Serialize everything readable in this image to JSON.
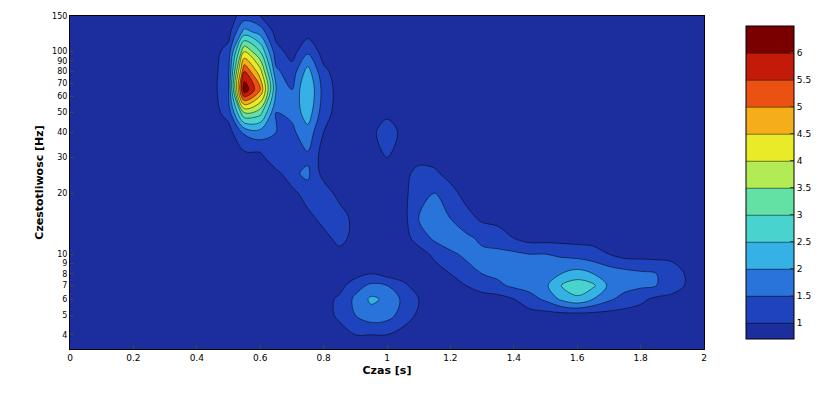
{
  "chart_data": {
    "type": "contour",
    "x_label": "Czas [s]",
    "y_label": "Czestotliwosc [Hz]",
    "log": "y",
    "grid": false,
    "xlim": [
      0,
      2
    ],
    "xticks": [
      0,
      0.2,
      0.4,
      0.6,
      0.8,
      1,
      1.2,
      1.4,
      1.6,
      1.8,
      2
    ],
    "ylim": [
      3.4,
      150
    ],
    "yticks": [
      4,
      5,
      6,
      7,
      8,
      9,
      10,
      20,
      30,
      40,
      50,
      60,
      70,
      80,
      90,
      100,
      150
    ],
    "x": [
      0,
      0.05,
      0.1,
      0.15,
      0.2,
      0.25,
      0.3,
      0.35,
      0.4,
      0.45,
      0.5,
      0.55,
      0.6,
      0.65,
      0.7,
      0.75,
      0.8,
      0.85,
      0.9,
      0.95,
      1,
      1.05,
      1.1,
      1.15,
      1.2,
      1.25,
      1.3,
      1.35,
      1.4,
      1.45,
      1.5,
      1.55,
      1.6,
      1.65,
      1.7,
      1.75,
      1.8,
      1.85,
      1.9,
      1.95,
      2
    ],
    "y": [
      3.4,
      4,
      5,
      6,
      7,
      8,
      10,
      12,
      15,
      20,
      25,
      30,
      40,
      50,
      65,
      80,
      100,
      125,
      150
    ],
    "z": [
      [
        0.8,
        0.8,
        0.8,
        0.8,
        0.8,
        0.8,
        0.8,
        0.8,
        0.8,
        0.8,
        0.8,
        0.8,
        0.8,
        0.8,
        0.8,
        0.8,
        0.8,
        0.8,
        0.8,
        0.8,
        0.8,
        0.8,
        0.8,
        0.8,
        0.8,
        0.8,
        0.8,
        0.8,
        0.8,
        0.8,
        0.8,
        0.8,
        0.8,
        0.8,
        0.8,
        0.8,
        0.8,
        0.8,
        0.8,
        0.8,
        0.8
      ],
      [
        0.8,
        0.8,
        0.8,
        0.8,
        0.8,
        0.8,
        0.8,
        0.8,
        0.8,
        0.8,
        0.8,
        0.8,
        0.8,
        0.8,
        0.8,
        0.8,
        0.8,
        0.8,
        1.0,
        1.0,
        1.0,
        0.8,
        0.8,
        0.8,
        0.8,
        0.8,
        0.8,
        0.8,
        0.8,
        0.8,
        0.8,
        0.8,
        0.8,
        0.8,
        0.8,
        0.8,
        0.8,
        0.8,
        0.8,
        0.8,
        0.8
      ],
      [
        0.8,
        0.8,
        0.8,
        0.8,
        0.8,
        0.8,
        0.8,
        0.8,
        0.8,
        0.8,
        0.8,
        0.8,
        0.8,
        0.8,
        0.8,
        0.8,
        0.8,
        1.1,
        1.5,
        1.8,
        1.7,
        1.3,
        0.9,
        0.8,
        0.8,
        0.8,
        0.8,
        0.8,
        0.8,
        0.8,
        0.8,
        0.8,
        0.8,
        0.8,
        0.8,
        0.8,
        0.8,
        0.8,
        0.8,
        0.8,
        0.8
      ],
      [
        0.8,
        0.8,
        0.8,
        0.8,
        0.8,
        0.8,
        0.8,
        0.8,
        0.8,
        0.8,
        0.8,
        0.8,
        0.8,
        0.8,
        0.8,
        0.8,
        0.8,
        1.1,
        1.6,
        2.1,
        1.9,
        1.4,
        1.0,
        0.8,
        0.8,
        0.8,
        0.8,
        0.8,
        1.0,
        1.3,
        1.6,
        2.1,
        2.4,
        2.0,
        1.6,
        1.3,
        1.1,
        0.9,
        0.8,
        0.8,
        0.8
      ],
      [
        0.8,
        0.8,
        0.8,
        0.8,
        0.8,
        0.8,
        0.8,
        0.8,
        0.8,
        0.8,
        0.8,
        0.8,
        0.8,
        0.8,
        0.8,
        0.8,
        0.8,
        0.8,
        1.3,
        1.6,
        1.5,
        1.1,
        0.8,
        0.8,
        0.8,
        1.0,
        1.2,
        1.4,
        1.6,
        1.7,
        1.9,
        2.5,
        2.8,
        2.6,
        1.9,
        1.7,
        1.6,
        1.5,
        1.3,
        0.9,
        0.8
      ],
      [
        0.8,
        0.8,
        0.8,
        0.8,
        0.8,
        0.8,
        0.8,
        0.8,
        0.8,
        0.8,
        0.8,
        0.8,
        0.8,
        0.8,
        0.8,
        0.8,
        0.8,
        0.8,
        0.8,
        1.0,
        0.8,
        0.8,
        0.8,
        0.8,
        1.0,
        1.3,
        1.5,
        1.6,
        1.7,
        1.7,
        1.8,
        2.0,
        2.2,
        2.0,
        1.8,
        1.7,
        1.6,
        1.5,
        1.3,
        0.9,
        0.8
      ],
      [
        0.8,
        0.8,
        0.8,
        0.8,
        0.8,
        0.8,
        0.8,
        0.8,
        0.8,
        0.8,
        0.8,
        0.8,
        0.8,
        0.8,
        0.8,
        0.8,
        0.8,
        0.8,
        0.8,
        0.8,
        0.8,
        0.8,
        0.8,
        1.1,
        1.4,
        1.6,
        1.6,
        1.6,
        1.6,
        1.5,
        1.5,
        1.4,
        1.3,
        1.2,
        1.0,
        0.8,
        0.8,
        0.8,
        0.8,
        0.8,
        0.8
      ],
      [
        0.8,
        0.8,
        0.8,
        0.8,
        0.8,
        0.8,
        0.8,
        0.8,
        0.8,
        0.8,
        0.8,
        0.8,
        0.8,
        0.8,
        0.8,
        0.8,
        0.8,
        1.2,
        0.8,
        0.8,
        0.8,
        0.8,
        1.2,
        1.6,
        1.8,
        1.6,
        1.4,
        1.3,
        1.0,
        0.8,
        0.8,
        0.8,
        0.8,
        0.8,
        0.8,
        0.8,
        0.8,
        0.8,
        0.8,
        0.8,
        0.8
      ],
      [
        0.8,
        0.8,
        0.8,
        0.8,
        0.8,
        0.8,
        0.8,
        0.8,
        0.8,
        0.8,
        0.8,
        0.8,
        0.8,
        0.8,
        0.8,
        0.8,
        1.2,
        1.3,
        0.8,
        0.8,
        0.8,
        0.8,
        1.5,
        1.7,
        1.5,
        1.2,
        0.9,
        0.8,
        0.8,
        0.8,
        0.8,
        0.8,
        0.8,
        0.8,
        0.8,
        0.8,
        0.8,
        0.8,
        0.8,
        0.8,
        0.8
      ],
      [
        0.8,
        0.8,
        0.8,
        0.8,
        0.8,
        0.8,
        0.8,
        0.8,
        0.8,
        0.8,
        0.8,
        0.8,
        0.8,
        0.8,
        0.8,
        1.3,
        1.3,
        0.8,
        0.8,
        0.8,
        0.8,
        0.8,
        1.4,
        1.5,
        1.2,
        0.8,
        0.8,
        0.8,
        0.8,
        0.8,
        0.8,
        0.8,
        0.8,
        0.8,
        0.8,
        0.8,
        0.8,
        0.8,
        0.8,
        0.8,
        0.8
      ],
      [
        0.8,
        0.8,
        0.8,
        0.8,
        0.8,
        0.8,
        0.8,
        0.8,
        0.8,
        0.8,
        0.8,
        0.8,
        0.8,
        0.8,
        1.4,
        1.6,
        0.8,
        0.8,
        0.8,
        0.8,
        0.8,
        0.8,
        1.2,
        1.1,
        0.8,
        0.8,
        0.8,
        0.8,
        0.8,
        0.8,
        0.8,
        0.8,
        0.8,
        0.8,
        0.8,
        0.8,
        0.8,
        0.8,
        0.8,
        0.8,
        0.8
      ],
      [
        0.8,
        0.8,
        0.8,
        0.8,
        0.8,
        0.8,
        0.8,
        0.8,
        0.8,
        0.8,
        0.8,
        0.8,
        0.8,
        1.5,
        1.5,
        1.4,
        0.8,
        0.8,
        0.8,
        0.8,
        1.0,
        0.8,
        0.8,
        0.8,
        0.8,
        0.8,
        0.8,
        0.8,
        0.8,
        0.8,
        0.8,
        0.8,
        0.8,
        0.8,
        0.8,
        0.8,
        0.8,
        0.8,
        0.8,
        0.8,
        0.8
      ],
      [
        0.8,
        0.8,
        0.8,
        0.8,
        0.8,
        0.8,
        0.8,
        0.8,
        0.8,
        0.8,
        0.8,
        1.6,
        1.8,
        1.5,
        1.4,
        1.8,
        1.0,
        0.8,
        0.8,
        0.8,
        1.4,
        0.8,
        0.8,
        0.8,
        0.8,
        0.8,
        0.8,
        0.8,
        0.8,
        0.8,
        0.8,
        0.8,
        0.8,
        0.8,
        0.8,
        0.8,
        0.8,
        0.8,
        0.8,
        0.8,
        0.8
      ],
      [
        0.8,
        0.8,
        0.8,
        0.8,
        0.8,
        0.8,
        0.8,
        0.8,
        0.8,
        0.8,
        1.2,
        3.5,
        3.2,
        1.5,
        1.6,
        2.3,
        1.2,
        0.8,
        0.8,
        0.8,
        0.8,
        0.8,
        0.8,
        0.8,
        0.8,
        0.8,
        0.8,
        0.8,
        0.8,
        0.8,
        0.8,
        0.8,
        0.8,
        0.8,
        0.8,
        0.8,
        0.8,
        0.8,
        0.8,
        0.8,
        0.8
      ],
      [
        0.8,
        0.8,
        0.8,
        0.8,
        0.8,
        0.8,
        0.8,
        0.8,
        0.8,
        0.8,
        1.5,
        6.4,
        5.0,
        2.0,
        1.5,
        2.5,
        1.3,
        0.8,
        0.8,
        0.8,
        0.8,
        0.8,
        0.8,
        0.8,
        0.8,
        0.8,
        0.8,
        0.8,
        0.8,
        0.8,
        0.8,
        0.8,
        0.8,
        0.8,
        0.8,
        0.8,
        0.8,
        0.8,
        0.8,
        0.8,
        0.8
      ],
      [
        0.8,
        0.8,
        0.8,
        0.8,
        0.8,
        0.8,
        0.8,
        0.8,
        0.8,
        0.8,
        1.4,
        5.5,
        4.2,
        1.6,
        1.2,
        2.2,
        1.1,
        0.8,
        0.8,
        0.8,
        0.8,
        0.8,
        0.8,
        0.8,
        0.8,
        0.8,
        0.8,
        0.8,
        0.8,
        0.8,
        0.8,
        0.8,
        0.8,
        0.8,
        0.8,
        0.8,
        0.8,
        0.8,
        0.8,
        0.8,
        0.8
      ],
      [
        0.8,
        0.8,
        0.8,
        0.8,
        0.8,
        0.8,
        0.8,
        0.8,
        0.8,
        0.8,
        1.2,
        4.0,
        3.0,
        1.2,
        0.8,
        1.4,
        0.8,
        0.8,
        0.8,
        0.8,
        0.8,
        0.8,
        0.8,
        0.8,
        0.8,
        0.8,
        0.8,
        0.8,
        0.8,
        0.8,
        0.8,
        0.8,
        0.8,
        0.8,
        0.8,
        0.8,
        0.8,
        0.8,
        0.8,
        0.8,
        0.8
      ],
      [
        0.8,
        0.8,
        0.8,
        0.8,
        0.8,
        0.8,
        0.8,
        0.8,
        0.8,
        0.8,
        0.8,
        2.2,
        1.8,
        0.8,
        0.8,
        0.8,
        0.8,
        0.8,
        0.8,
        0.8,
        0.8,
        0.8,
        0.8,
        0.8,
        0.8,
        0.8,
        0.8,
        0.8,
        0.8,
        0.8,
        0.8,
        0.8,
        0.8,
        0.8,
        0.8,
        0.8,
        0.8,
        0.8,
        0.8,
        0.8,
        0.8
      ],
      [
        0.8,
        0.8,
        0.8,
        0.8,
        0.8,
        0.8,
        0.8,
        0.8,
        0.8,
        0.8,
        0.8,
        1.2,
        1.0,
        0.8,
        0.8,
        0.8,
        0.8,
        0.8,
        0.8,
        0.8,
        0.8,
        0.8,
        0.8,
        0.8,
        0.8,
        0.8,
        0.8,
        0.8,
        0.8,
        0.8,
        0.8,
        0.8,
        0.8,
        0.8,
        0.8,
        0.8,
        0.8,
        0.8,
        0.8,
        0.8,
        0.8
      ]
    ],
    "colorbar": {
      "range": [
        0.7,
        6.5
      ],
      "ticks": [
        1,
        1.5,
        2,
        2.5,
        3,
        3.5,
        4,
        4.5,
        5,
        5.5,
        6
      ]
    }
  }
}
